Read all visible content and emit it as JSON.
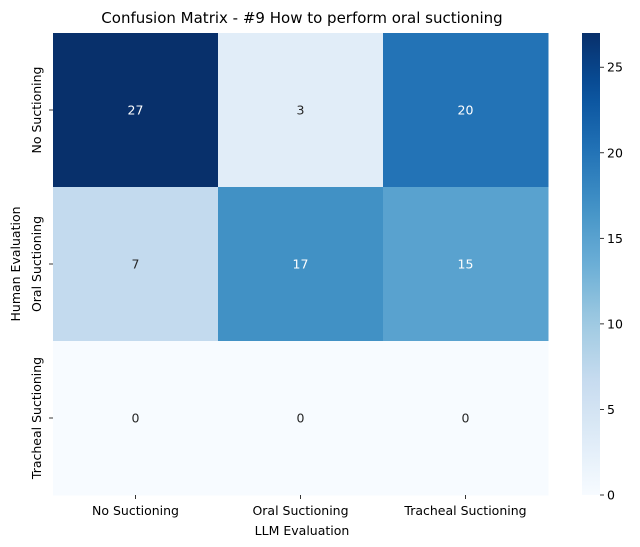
{
  "chart_data": {
    "type": "heatmap",
    "title": "Confusion Matrix - #9 How to perform oral suctioning",
    "xlabel": "LLM Evaluation",
    "ylabel": "Human Evaluation",
    "x_categories": [
      "No Suctioning",
      "Oral Suctioning",
      "Tracheal Suctioning"
    ],
    "y_categories": [
      "No Suctioning",
      "Oral Suctioning",
      "Tracheal Suctioning"
    ],
    "values": [
      [
        27,
        3,
        20
      ],
      [
        7,
        17,
        15
      ],
      [
        0,
        0,
        0
      ]
    ],
    "colormap": "Blues",
    "vmin": 0,
    "vmax": 27,
    "colorbar_ticks": [
      0,
      5,
      10,
      15,
      20,
      25
    ],
    "colorbar_tick_labels": [
      "0",
      "5",
      "10",
      "15",
      "20",
      "25"
    ],
    "annotation_dark_color": "#262626",
    "annotation_light_color": "#ffffff",
    "grid": false,
    "legend": "colorbar-right"
  }
}
